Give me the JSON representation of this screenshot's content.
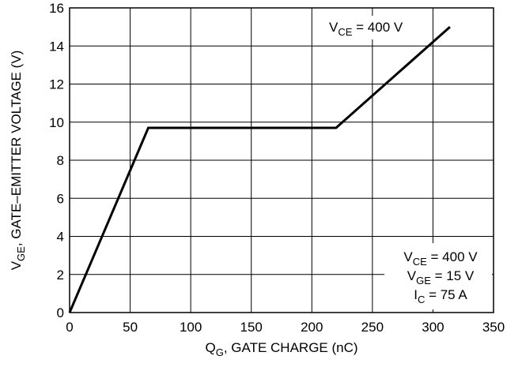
{
  "chart_data": {
    "type": "line",
    "xlabel": {
      "main": "Q",
      "sub": "G",
      "rest": ", GATE CHARGE (nC)"
    },
    "ylabel": {
      "main": "V",
      "sub": "GE",
      "rest": ", GATE–EMITTER VOLTAGE (V)"
    },
    "xlim": [
      0,
      350
    ],
    "ylim": [
      0,
      16
    ],
    "xticks": [
      0,
      50,
      100,
      150,
      200,
      250,
      300,
      350
    ],
    "yticks": [
      0,
      2,
      4,
      6,
      8,
      10,
      12,
      14,
      16
    ],
    "grid": true,
    "series": [
      {
        "x": [
          0,
          65,
          220,
          314
        ],
        "y": [
          0,
          9.7,
          9.7,
          15.0
        ]
      }
    ],
    "annotations": [
      {
        "id": "curve-label",
        "parts": [
          {
            "main": "V",
            "sub": "CE",
            "rest": " = 400 V"
          }
        ]
      },
      {
        "id": "conditions",
        "parts": [
          {
            "main": "V",
            "sub": "CE",
            "rest": " = 400 V"
          },
          {
            "main": "V",
            "sub": "GE",
            "rest": " = 15 V"
          },
          {
            "main": "I",
            "sub": "C",
            "rest": " = 75 A"
          }
        ]
      }
    ]
  }
}
